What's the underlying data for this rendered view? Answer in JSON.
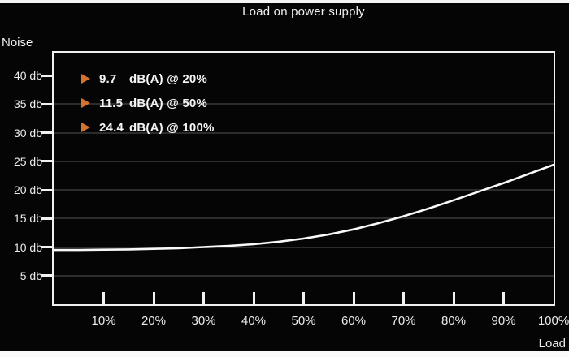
{
  "page": {
    "title": "Load on power supply",
    "y_axis_name": "Noise",
    "x_axis_name": "Load"
  },
  "legend": [
    {
      "value": "9.7",
      "label": "dB(A) @ 20%"
    },
    {
      "value": "11.5",
      "label": "dB(A) @ 50%"
    },
    {
      "value": "24.4",
      "label": "dB(A) @ 100%"
    }
  ],
  "colors": {
    "background": "#050505",
    "frame": "#f0f0f0",
    "curve": "#fafafa",
    "gridline": "#2c2c2c",
    "text": "#ededed",
    "accent_orange": "#d4732e"
  },
  "chart_data": {
    "type": "line",
    "title": "Load on power supply",
    "xlabel": "Load",
    "ylabel": "Noise",
    "x_unit": "%",
    "y_unit": "db",
    "xlim": [
      0,
      100
    ],
    "ylim": [
      0,
      44
    ],
    "grid": "horizontal",
    "legend_position": "top-left",
    "x_ticks": [
      {
        "value": 10,
        "label": "10%"
      },
      {
        "value": 20,
        "label": "20%"
      },
      {
        "value": 30,
        "label": "30%"
      },
      {
        "value": 40,
        "label": "40%"
      },
      {
        "value": 50,
        "label": "50%"
      },
      {
        "value": 60,
        "label": "60%"
      },
      {
        "value": 70,
        "label": "70%"
      },
      {
        "value": 80,
        "label": "80%"
      },
      {
        "value": 90,
        "label": "90%"
      },
      {
        "value": 100,
        "label": "100%"
      }
    ],
    "y_ticks": [
      {
        "value": 5,
        "label": "5 db"
      },
      {
        "value": 10,
        "label": "10 db"
      },
      {
        "value": 15,
        "label": "15 db"
      },
      {
        "value": 20,
        "label": "20 db"
      },
      {
        "value": 25,
        "label": "25 db"
      },
      {
        "value": 30,
        "label": "30 db"
      },
      {
        "value": 35,
        "label": "35 db"
      },
      {
        "value": 40,
        "label": "40 db"
      }
    ],
    "gridline_values": [
      5,
      10,
      15,
      20,
      25,
      30,
      35
    ],
    "annotated_points": [
      {
        "load_pct": 20,
        "db": 9.7
      },
      {
        "load_pct": 50,
        "db": 11.5
      },
      {
        "load_pct": 100,
        "db": 24.4
      }
    ],
    "series": [
      {
        "name": "noise-curve",
        "x": [
          0,
          5,
          10,
          15,
          20,
          25,
          30,
          35,
          40,
          45,
          50,
          55,
          60,
          65,
          70,
          75,
          80,
          85,
          90,
          95,
          100
        ],
        "y": [
          9.5,
          9.5,
          9.55,
          9.6,
          9.7,
          9.8,
          10.0,
          10.2,
          10.5,
          10.95,
          11.5,
          12.2,
          13.1,
          14.2,
          15.4,
          16.75,
          18.2,
          19.7,
          21.2,
          22.8,
          24.4
        ]
      }
    ]
  }
}
